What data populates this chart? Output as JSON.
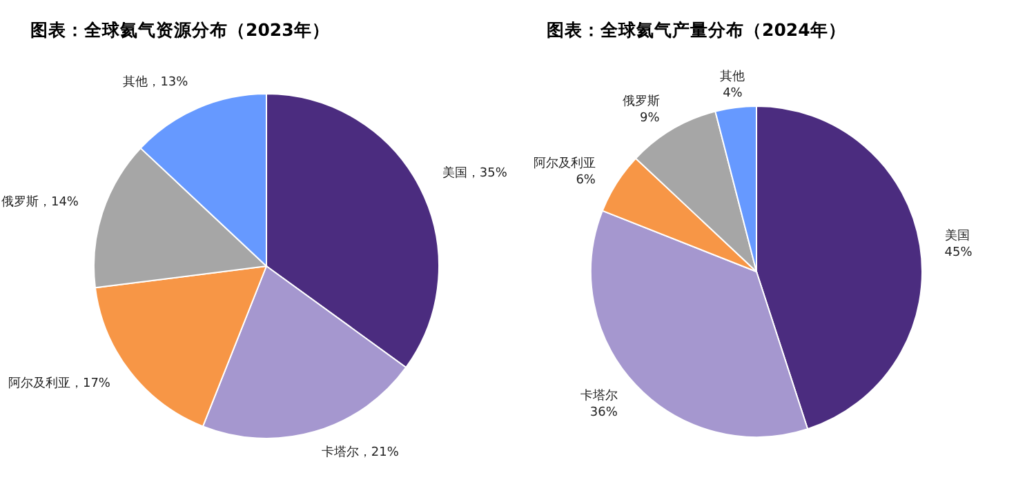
{
  "chart_data": [
    {
      "type": "pie",
      "title": "图表：全球氦气资源分布（2023年）",
      "categories": [
        "美国",
        "卡塔尔",
        "阿尔及利亚",
        "俄罗斯",
        "其他"
      ],
      "values": [
        35,
        21,
        17,
        14,
        13
      ],
      "value_labels": [
        "35%",
        "21%",
        "17%",
        "14%",
        "13%"
      ],
      "colors": [
        "#4b2c7f",
        "#a597cf",
        "#f79646",
        "#a6a6a6",
        "#6699ff"
      ]
    },
    {
      "type": "pie",
      "title": "图表：全球氦气产量分布（2024年）",
      "categories": [
        "美国",
        "卡塔尔",
        "阿尔及利亚",
        "俄罗斯",
        "其他"
      ],
      "values": [
        45,
        36,
        6,
        9,
        4
      ],
      "value_labels": [
        "45%",
        "36%",
        "6%",
        "9%",
        "4%"
      ],
      "colors": [
        "#4b2c7f",
        "#a597cf",
        "#f79646",
        "#a6a6a6",
        "#6699ff"
      ]
    }
  ]
}
